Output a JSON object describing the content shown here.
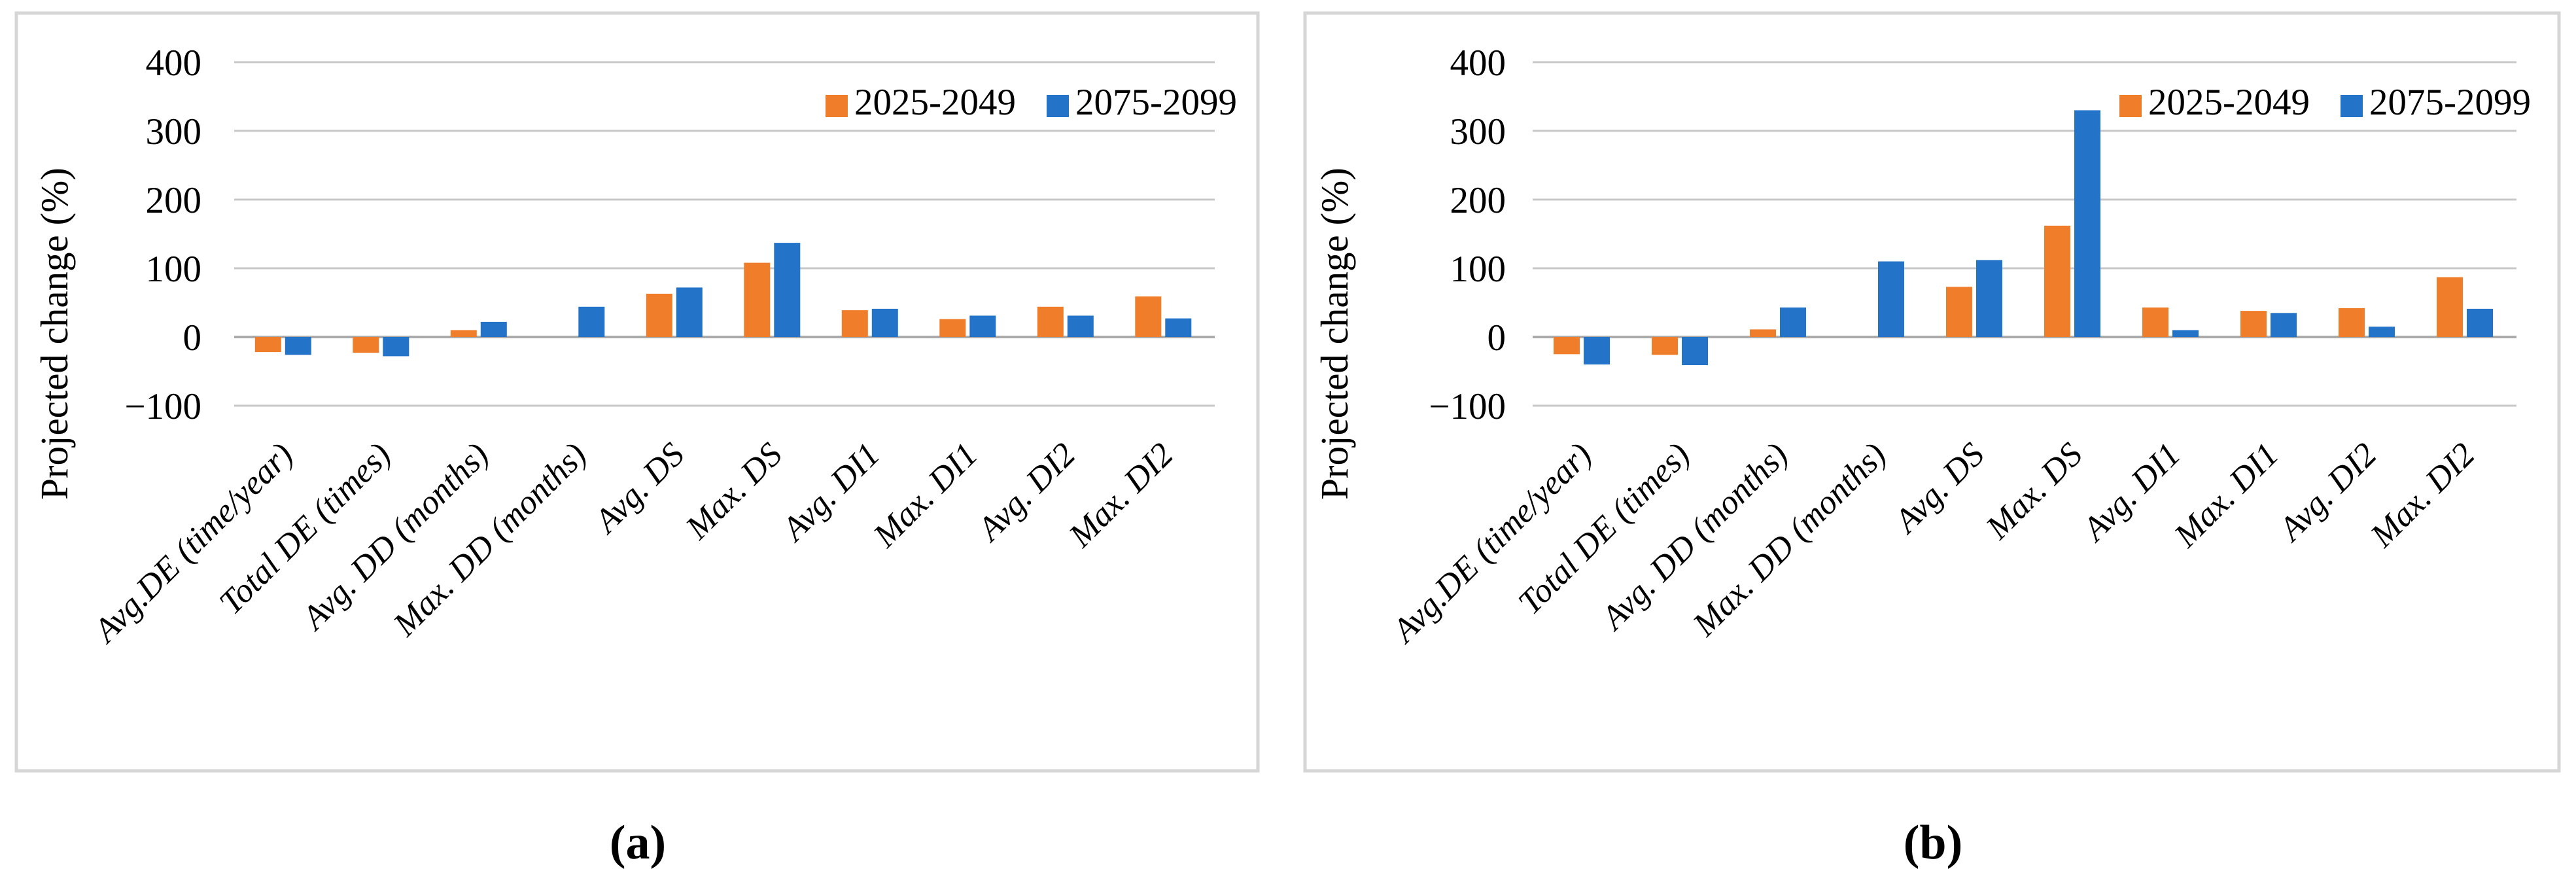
{
  "figure_type": "two-panel grouped bar chart",
  "captions": [
    "(a)",
    "(b)"
  ],
  "colors": {
    "series_2025_2049": "#F07D29",
    "series_2075_2099": "#2373C9",
    "gridline": "#C8C8C8",
    "zero_line": "#ABABAB",
    "panel_border": "#D6D6D6",
    "text": "#000000",
    "background": "#FFFFFF"
  },
  "chart_data": [
    {
      "panel": "a",
      "type": "bar",
      "title": "",
      "xlabel": "",
      "ylabel": "Projected change (%)",
      "ylim": [
        -100,
        400
      ],
      "ytick_values": [
        400,
        300,
        200,
        100,
        0,
        -100
      ],
      "yticks": [
        "400",
        "300",
        "200",
        "100",
        "0",
        "−100"
      ],
      "grid": true,
      "legend_position": "top-right-inside",
      "categories": [
        "Avg.DE (time/year)",
        "Total DE (times)",
        "Avg. DD (months)",
        "Max. DD (months)",
        "Avg. DS",
        "Max. DS",
        "Avg. DI1",
        "Max. DI1",
        "Avg. DI2",
        "Max. DI2"
      ],
      "series": [
        {
          "name": "2025-2049",
          "color": "#F07D29",
          "values": [
            -22,
            -23,
            10,
            0,
            63,
            108,
            39,
            26,
            44,
            59
          ]
        },
        {
          "name": "2075-2099",
          "color": "#2373C9",
          "values": [
            -26,
            -28,
            22,
            44,
            72,
            137,
            41,
            31,
            31,
            27
          ]
        }
      ]
    },
    {
      "panel": "b",
      "type": "bar",
      "title": "",
      "xlabel": "",
      "ylabel": "Projected change (%)",
      "ylim": [
        -100,
        400
      ],
      "ytick_values": [
        400,
        300,
        200,
        100,
        0,
        -100
      ],
      "yticks": [
        "400",
        "300",
        "200",
        "100",
        "0",
        "−100"
      ],
      "grid": true,
      "legend_position": "top-right-inside",
      "categories": [
        "Avg.DE (time/year)",
        "Total DE (times)",
        "Avg. DD (months)",
        "Max. DD (months)",
        "Avg. DS",
        "Max. DS",
        "Avg. DI1",
        "Max. DI1",
        "Avg. DI2",
        "Max. DI2"
      ],
      "series": [
        {
          "name": "2025-2049",
          "color": "#F07D29",
          "values": [
            -25,
            -26,
            11,
            0,
            73,
            162,
            43,
            38,
            42,
            87
          ]
        },
        {
          "name": "2075-2099",
          "color": "#2373C9",
          "values": [
            -40,
            -41,
            43,
            110,
            112,
            330,
            10,
            35,
            15,
            41
          ]
        }
      ]
    }
  ]
}
